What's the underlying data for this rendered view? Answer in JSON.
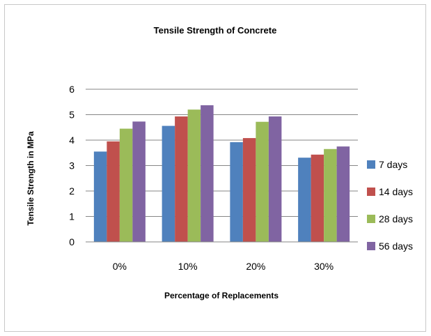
{
  "chart_data": {
    "type": "bar",
    "title": "Tensile Strength of Concrete",
    "xlabel": "Percentage of Replacements",
    "ylabel": "Tensile  Strength in MPa",
    "categories": [
      "0%",
      "10%",
      "20%",
      "30%"
    ],
    "series": [
      {
        "name": "7 days",
        "color": "#4f81bd",
        "values": [
          3.55,
          4.56,
          3.92,
          3.31
        ]
      },
      {
        "name": "14 days",
        "color": "#c0504d",
        "values": [
          3.95,
          4.93,
          4.08,
          3.43
        ]
      },
      {
        "name": "28 days",
        "color": "#9bbb59",
        "values": [
          4.45,
          5.2,
          4.72,
          3.65
        ]
      },
      {
        "name": "56 days",
        "color": "#8064a2",
        "values": [
          4.73,
          5.37,
          4.93,
          3.75
        ]
      }
    ],
    "ylim": [
      0,
      6
    ],
    "yticks": [
      "0",
      "1",
      "2",
      "3",
      "4",
      "5",
      "6"
    ],
    "grid": true,
    "legend_position": "right"
  }
}
